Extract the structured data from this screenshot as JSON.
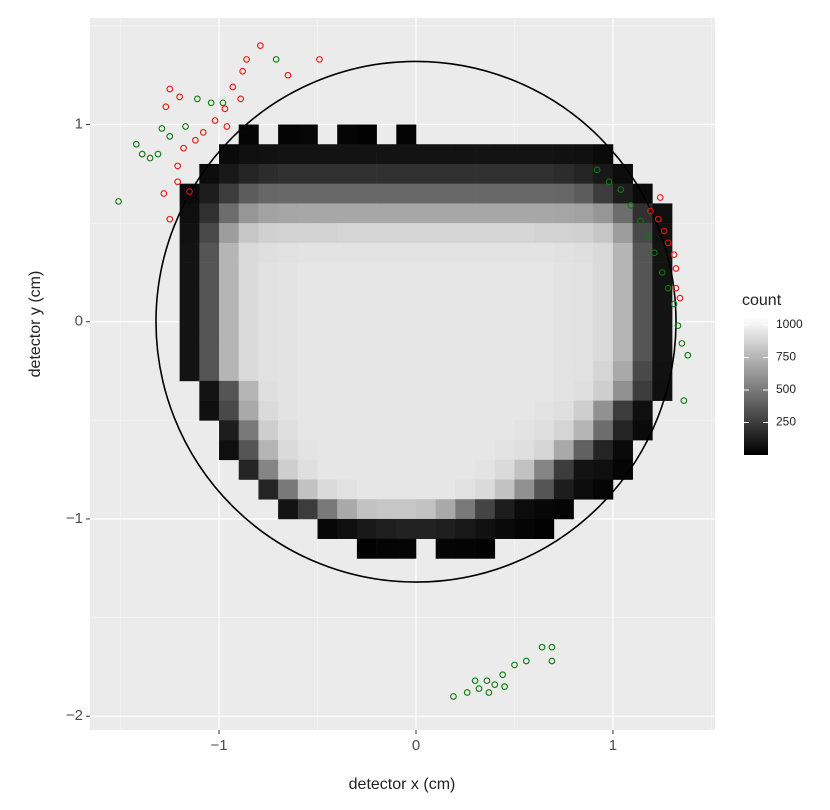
{
  "chart_data": {
    "type": "heatmap",
    "x_label": "detector x (cm)",
    "y_label": "detector y (cm)",
    "xlim": [
      -1.655,
      1.518
    ],
    "ylim": [
      -2.07,
      1.54
    ],
    "xticks": [
      {
        "value": -1,
        "label": "−1"
      },
      0,
      1
    ],
    "yticks": [
      {
        "value": -2,
        "label": "−2"
      },
      {
        "value": -1,
        "label": "−1"
      },
      0,
      1
    ],
    "xminor": [
      -1.5,
      -0.5,
      0.5,
      1.5
    ],
    "yminor": [
      -1.5,
      -0.5,
      0.5,
      1.5
    ],
    "grid": true,
    "panel_color": "#ebebeb",
    "colorbar": {
      "title": "count",
      "clim": [
        0,
        1054
      ],
      "ticks": [
        250,
        500,
        750,
        1000
      ],
      "colors": [
        "#000000",
        "#ffffff"
      ]
    },
    "xbins": [
      -1.3,
      -1.2,
      -1.1,
      -1.0,
      -0.9,
      -0.8,
      -0.7,
      -0.6,
      -0.5,
      -0.4,
      -0.3,
      -0.2,
      -0.1,
      0.0,
      0.1,
      0.2,
      0.3,
      0.4,
      0.5,
      0.6,
      0.7,
      0.8,
      0.9,
      1.0,
      1.1,
      1.2,
      1.3,
      1.4
    ],
    "ybins": [
      1.0,
      0.9,
      0.8,
      0.7,
      0.6,
      0.5,
      0.4,
      0.3,
      0.2,
      0.1,
      0.0,
      -0.1,
      -0.2,
      -0.3,
      -0.4,
      -0.5,
      -0.6,
      -0.7,
      -0.8,
      -0.9,
      -1.0,
      -1.1,
      -1.2
    ],
    "z": [
      [
        null,
        null,
        null,
        null,
        20,
        null,
        15,
        25,
        null,
        20,
        10,
        null,
        15,
        null,
        null,
        null,
        null,
        null,
        null,
        null,
        null,
        null,
        null,
        null,
        null,
        null,
        null
      ],
      [
        null,
        null,
        null,
        40,
        60,
        70,
        80,
        80,
        80,
        80,
        80,
        80,
        80,
        80,
        80,
        80,
        80,
        80,
        80,
        80,
        70,
        60,
        40,
        null,
        null,
        null,
        null
      ],
      [
        null,
        null,
        50,
        100,
        150,
        180,
        200,
        200,
        200,
        200,
        200,
        200,
        200,
        200,
        200,
        200,
        200,
        200,
        200,
        200,
        180,
        150,
        100,
        50,
        null,
        null,
        null
      ],
      [
        null,
        40,
        120,
        250,
        380,
        420,
        430,
        430,
        430,
        430,
        430,
        430,
        430,
        430,
        430,
        430,
        430,
        430,
        430,
        430,
        420,
        380,
        250,
        120,
        40,
        null,
        null
      ],
      [
        null,
        60,
        200,
        450,
        620,
        670,
        680,
        690,
        690,
        690,
        690,
        690,
        690,
        690,
        690,
        690,
        690,
        690,
        690,
        690,
        680,
        670,
        620,
        450,
        200,
        60,
        null
      ],
      [
        null,
        70,
        300,
        650,
        820,
        860,
        870,
        870,
        870,
        880,
        880,
        880,
        880,
        880,
        880,
        880,
        880,
        880,
        880,
        870,
        870,
        860,
        820,
        650,
        300,
        70,
        null
      ],
      [
        null,
        80,
        350,
        750,
        900,
        920,
        930,
        940,
        940,
        940,
        940,
        940,
        940,
        940,
        940,
        940,
        940,
        940,
        940,
        940,
        930,
        920,
        900,
        750,
        350,
        80,
        null
      ],
      [
        null,
        80,
        350,
        750,
        900,
        930,
        940,
        950,
        950,
        950,
        950,
        950,
        950,
        950,
        950,
        950,
        950,
        950,
        950,
        950,
        940,
        930,
        900,
        750,
        350,
        80,
        null
      ],
      [
        null,
        80,
        350,
        750,
        900,
        930,
        940,
        950,
        950,
        950,
        950,
        950,
        950,
        950,
        950,
        950,
        950,
        950,
        950,
        950,
        940,
        930,
        900,
        750,
        350,
        80,
        null
      ],
      [
        null,
        80,
        350,
        750,
        900,
        930,
        940,
        950,
        950,
        950,
        950,
        950,
        950,
        950,
        950,
        950,
        950,
        950,
        950,
        950,
        940,
        930,
        900,
        750,
        350,
        80,
        null
      ],
      [
        null,
        80,
        350,
        750,
        900,
        930,
        940,
        950,
        950,
        950,
        950,
        950,
        950,
        950,
        950,
        950,
        950,
        950,
        950,
        950,
        940,
        930,
        900,
        750,
        350,
        80,
        null
      ],
      [
        null,
        80,
        350,
        750,
        900,
        930,
        940,
        950,
        950,
        950,
        950,
        950,
        950,
        950,
        950,
        950,
        950,
        950,
        950,
        950,
        940,
        930,
        900,
        750,
        350,
        80,
        null
      ],
      [
        null,
        80,
        350,
        750,
        900,
        930,
        940,
        950,
        950,
        950,
        950,
        950,
        950,
        950,
        950,
        950,
        950,
        950,
        950,
        950,
        940,
        930,
        880,
        700,
        300,
        70,
        null
      ],
      [
        null,
        null,
        80,
        350,
        750,
        920,
        940,
        950,
        950,
        950,
        950,
        950,
        950,
        950,
        950,
        950,
        950,
        950,
        950,
        950,
        940,
        920,
        850,
        600,
        250,
        60,
        null
      ],
      [
        null,
        null,
        60,
        300,
        700,
        900,
        940,
        950,
        950,
        950,
        950,
        950,
        950,
        950,
        950,
        950,
        950,
        950,
        950,
        940,
        920,
        850,
        600,
        250,
        60,
        null,
        null
      ],
      [
        null,
        null,
        null,
        120,
        500,
        850,
        920,
        950,
        950,
        950,
        950,
        950,
        950,
        950,
        950,
        950,
        950,
        950,
        940,
        920,
        880,
        750,
        450,
        150,
        40,
        null,
        null
      ],
      [
        null,
        null,
        null,
        60,
        350,
        750,
        900,
        940,
        950,
        950,
        950,
        950,
        950,
        950,
        950,
        950,
        950,
        940,
        920,
        880,
        700,
        400,
        150,
        40,
        null,
        null,
        null
      ],
      [
        null,
        null,
        null,
        null,
        150,
        550,
        850,
        920,
        950,
        950,
        950,
        950,
        950,
        950,
        950,
        950,
        940,
        900,
        800,
        550,
        250,
        80,
        60,
        20,
        null,
        null,
        null
      ],
      [
        null,
        null,
        null,
        null,
        null,
        150,
        500,
        800,
        900,
        930,
        950,
        950,
        950,
        950,
        950,
        930,
        900,
        800,
        600,
        350,
        120,
        50,
        20,
        null,
        null,
        null,
        null
      ],
      [
        null,
        null,
        null,
        null,
        null,
        null,
        80,
        250,
        500,
        700,
        800,
        820,
        820,
        800,
        700,
        500,
        280,
        120,
        50,
        30,
        20,
        null,
        null,
        null,
        null,
        null,
        null
      ],
      [
        null,
        null,
        null,
        null,
        null,
        null,
        null,
        null,
        30,
        60,
        100,
        130,
        140,
        140,
        130,
        100,
        70,
        40,
        20,
        10,
        null,
        null,
        null,
        null,
        null,
        null,
        null
      ],
      [
        null,
        null,
        null,
        null,
        null,
        null,
        null,
        null,
        null,
        null,
        10,
        15,
        20,
        null,
        20,
        15,
        10,
        null,
        null,
        null,
        null,
        null,
        null,
        null,
        null,
        null,
        null
      ]
    ],
    "circle": {
      "cx": 0,
      "cy": 0,
      "r": 1.32,
      "color": "#000000"
    },
    "series": [
      {
        "color": "#e8140f",
        "x": [
          -0.79,
          -0.86,
          -0.88,
          -0.93,
          -0.89,
          -0.97,
          -1.02,
          -1.08,
          -1.12,
          -1.18,
          -1.25,
          -1.2,
          -1.27,
          -1.21,
          -1.21,
          -1.28,
          -1.15,
          -1.25,
          -0.49,
          -0.65,
          -0.96,
          1.19,
          1.23,
          1.26,
          1.28,
          1.31,
          1.32,
          1.32,
          1.34,
          1.24
        ],
        "y": [
          1.4,
          1.33,
          1.27,
          1.19,
          1.13,
          1.08,
          1.02,
          0.96,
          0.92,
          0.88,
          1.18,
          1.14,
          1.09,
          0.79,
          0.71,
          0.65,
          0.66,
          0.52,
          1.33,
          1.25,
          0.99,
          0.56,
          0.52,
          0.46,
          0.4,
          0.34,
          0.27,
          0.17,
          0.12,
          0.63
        ]
      },
      {
        "color": "#0a7a0a",
        "x": [
          -1.51,
          -1.42,
          -1.39,
          -1.35,
          -1.31,
          -1.29,
          -1.25,
          -1.17,
          -1.11,
          -1.04,
          -0.98,
          -0.71,
          0.92,
          0.98,
          1.04,
          1.09,
          1.14,
          1.18,
          1.21,
          1.25,
          1.28,
          1.31,
          1.33,
          1.35,
          1.38,
          1.36,
          0.19,
          0.26,
          0.3,
          0.32,
          0.36,
          0.37,
          0.4,
          0.44,
          0.45,
          0.5,
          0.56,
          0.64,
          0.69,
          0.69
        ],
        "y": [
          0.61,
          0.9,
          0.85,
          0.83,
          0.85,
          0.98,
          0.94,
          0.99,
          1.13,
          1.11,
          1.11,
          1.33,
          0.77,
          0.71,
          0.67,
          0.59,
          0.51,
          0.43,
          0.35,
          0.25,
          0.17,
          0.09,
          -0.02,
          -0.11,
          -0.17,
          -0.4,
          -1.9,
          -1.88,
          -1.82,
          -1.86,
          -1.82,
          -1.88,
          -1.84,
          -1.79,
          -1.85,
          -1.74,
          -1.72,
          -1.65,
          -1.65,
          -1.72
        ]
      }
    ]
  }
}
